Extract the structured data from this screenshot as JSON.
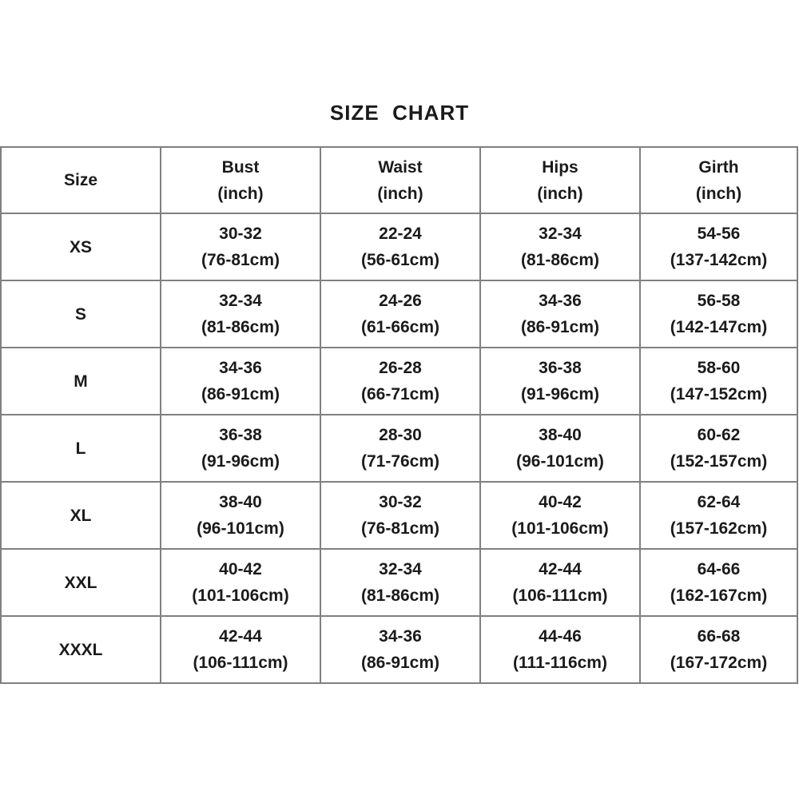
{
  "page": {
    "title": "SIZE  CHART"
  },
  "colors": {
    "background": "#ffffff",
    "border": "#808080",
    "text": "#1b1b1b"
  },
  "chart_data": {
    "type": "table",
    "title": "SIZE CHART",
    "columns": [
      {
        "name": "Size",
        "unit": ""
      },
      {
        "name": "Bust",
        "unit": "(inch)"
      },
      {
        "name": "Waist",
        "unit": "(inch)"
      },
      {
        "name": "Hips",
        "unit": "(inch)"
      },
      {
        "name": "Girth",
        "unit": "(inch)"
      }
    ],
    "rows": [
      {
        "size": "XS",
        "values": [
          [
            "30-32",
            "(76-81cm)"
          ],
          [
            "22-24",
            "(56-61cm)"
          ],
          [
            "32-34",
            "(81-86cm)"
          ],
          [
            "54-56",
            "(137-142cm)"
          ]
        ]
      },
      {
        "size": "S",
        "values": [
          [
            "32-34",
            "(81-86cm)"
          ],
          [
            "24-26",
            "(61-66cm)"
          ],
          [
            "34-36",
            "(86-91cm)"
          ],
          [
            "56-58",
            "(142-147cm)"
          ]
        ]
      },
      {
        "size": "M",
        "values": [
          [
            "34-36",
            "(86-91cm)"
          ],
          [
            "26-28",
            "(66-71cm)"
          ],
          [
            "36-38",
            "(91-96cm)"
          ],
          [
            "58-60",
            "(147-152cm)"
          ]
        ]
      },
      {
        "size": "L",
        "values": [
          [
            "36-38",
            "(91-96cm)"
          ],
          [
            "28-30",
            "(71-76cm)"
          ],
          [
            "38-40",
            "(96-101cm)"
          ],
          [
            "60-62",
            "(152-157cm)"
          ]
        ]
      },
      {
        "size": "XL",
        "values": [
          [
            "38-40",
            "(96-101cm)"
          ],
          [
            "30-32",
            "(76-81cm)"
          ],
          [
            "40-42",
            "(101-106cm)"
          ],
          [
            "62-64",
            "(157-162cm)"
          ]
        ]
      },
      {
        "size": "XXL",
        "values": [
          [
            "40-42",
            "(101-106cm)"
          ],
          [
            "32-34",
            "(81-86cm)"
          ],
          [
            "42-44",
            "(106-111cm)"
          ],
          [
            "64-66",
            "(162-167cm)"
          ]
        ]
      },
      {
        "size": "XXXL",
        "values": [
          [
            "42-44",
            "(106-111cm)"
          ],
          [
            "34-36",
            "(86-91cm)"
          ],
          [
            "44-46",
            "(111-116cm)"
          ],
          [
            "66-68",
            "(167-172cm)"
          ]
        ]
      }
    ]
  }
}
